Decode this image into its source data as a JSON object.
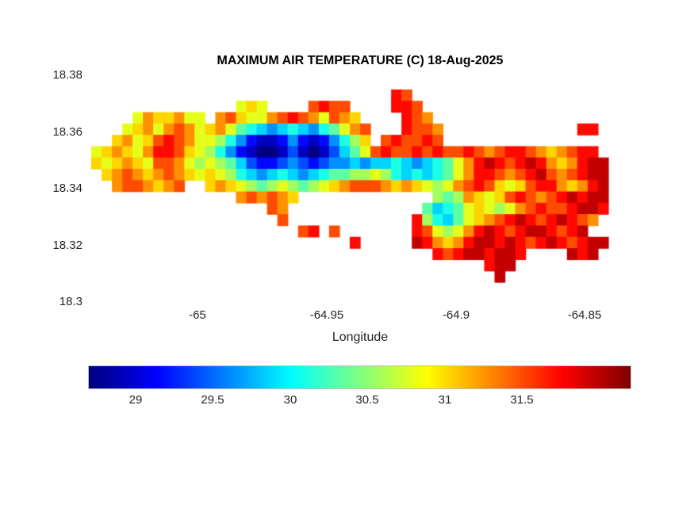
{
  "figure": {
    "title": "MAXIMUM AIR TEMPERATURE (C) 18-Aug-2025",
    "xlabel": "Longitude"
  },
  "chart_data": {
    "type": "heatmap",
    "title": "MAXIMUM AIR TEMPERATURE (C) 18-Aug-2025",
    "xlabel": "Longitude",
    "ylabel": "",
    "variable": "maximum air temperature",
    "units": "C",
    "date": "18-Aug-2025",
    "xlim": [
      -65.041,
      -64.833
    ],
    "ylim": [
      18.3,
      18.38
    ],
    "x_tick_values": [
      -65,
      -64.95,
      -64.9,
      -64.85
    ],
    "x_tick_labels": [
      "-65",
      "-64.95",
      "-64.9",
      "-64.85"
    ],
    "y_tick_values": [
      18.38,
      18.36,
      18.34,
      18.32,
      18.3
    ],
    "y_tick_labels": [
      "18.38",
      "18.36",
      "18.34",
      "18.32",
      "18.3"
    ],
    "colormap": "jet",
    "grid_on": false,
    "colorbar": {
      "orientation": "horizontal",
      "vmin": 28.7,
      "vmax": 32.2,
      "tick_values": [
        29,
        29.5,
        30,
        30.5,
        31,
        31.5
      ],
      "tick_labels": [
        "29",
        "29.5",
        "30",
        "30.5",
        "31",
        "31.5"
      ]
    },
    "grid_encoding": {
      "sea": ".",
      "levels": "0123456789abcdef",
      "level_temperatures_c": [
        28.7,
        28.93,
        29.17,
        29.4,
        29.63,
        29.87,
        30.1,
        30.33,
        30.57,
        30.8,
        31.03,
        31.27,
        31.5,
        31.73,
        31.97,
        32.2
      ]
    },
    "grid_lon_start": -65.041,
    "grid_lat_start": 18.375,
    "cell_deg": 0.004,
    "grid": [
      ".............................dc.....................",
      "..............9a9....cdcc....ddc....................",
      "....9baab99.bca99bcdcb9cba....dcb...................",
      "...9ab9bcb9ab976545654679bc...dccb.............dd...",
      "..ab9acdcb9986421124212468a.cdccdc..................",
      "9aba9bddca98642100131013579cdccdcdccdcbcddcbabcdd...",
      "a9aba9ccb989875322343234454556545679bdedcdedbabdee..",
      ".abcbabcba9a986545654567788986565679bddcbcdecbcdee..",
      "..bccbabc..aba987898789abcccbaba989bcdca9acddbabde..",
      "..............bcbcba.............878ba9acdcbcdedee..",
      ".................cb.............75679a989bcdccdeed..",
      "..................c............d86579abcdedcdedcb...",
      "....................cd.c.......dc989bdedcdeedcde....",
      ".........................d.....edbabdeededcdedcdee..",
      ".................................dcdeedeed....ede...",
      "......................................dee...........",
      ".......................................e............",
      "...................................................."
    ]
  }
}
